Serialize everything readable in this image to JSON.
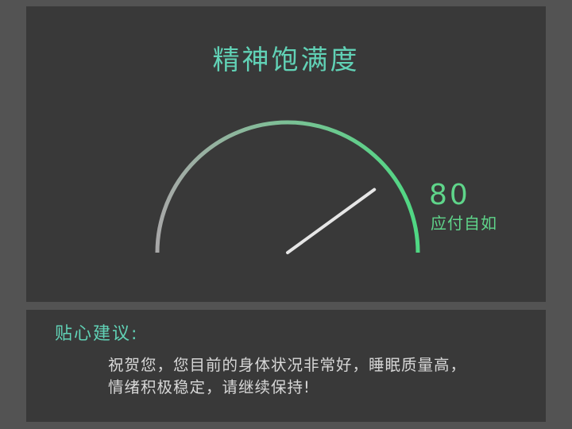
{
  "gauge": {
    "title": "精神饱满度",
    "score": "80",
    "score_value": 80,
    "score_max": 100,
    "level_label": "应付自如",
    "colors": {
      "arc_start": "#a8a8a8",
      "arc_end": "#4fd883",
      "needle": "#e6e6e6",
      "accent": "#61d2b6"
    }
  },
  "advice": {
    "title": "贴心建议:",
    "text": "祝贺您，您目前的身体状况非常好，睡眠质量高，情绪积极稳定，请继续保持!"
  }
}
